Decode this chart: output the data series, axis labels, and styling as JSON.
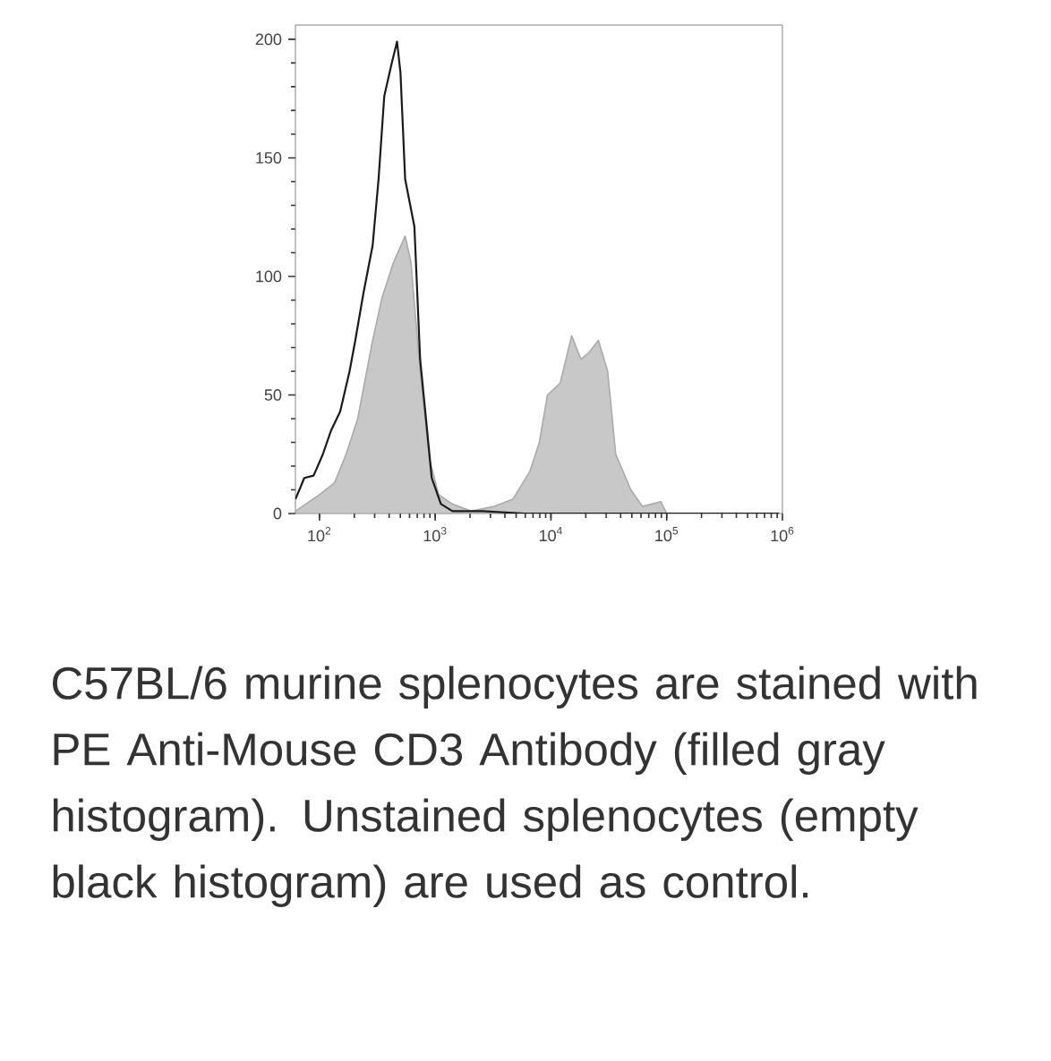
{
  "chart_data": {
    "type": "area",
    "log": "x",
    "grid": false,
    "xlim": [
      62,
      1000000
    ],
    "ylim": [
      0,
      206
    ],
    "xticks": [
      {
        "value": 100,
        "label": "10$^{2}$"
      },
      {
        "value": 1000,
        "label": "10$^{3}$"
      },
      {
        "value": 10000,
        "label": "10$^{4}$"
      },
      {
        "value": 100000,
        "label": "10$^{5}$"
      },
      {
        "value": 1000000,
        "label": "10$^{6}$"
      }
    ],
    "yticks": [
      0,
      50,
      100,
      150,
      200
    ],
    "series": [
      {
        "color": "#c8c8c8",
        "x": [
          62,
          100,
          135,
          170,
          214,
          288,
          347,
          437,
          550,
          617,
          741,
          891,
          1070,
          1410,
          2040,
          3240,
          4680,
          6610,
          7940,
          9330,
          12000,
          15100,
          18200,
          21400,
          25700,
          30900,
          36300,
          49000,
          61700,
          89100,
          100000,
          933000
        ],
        "values": [
          1,
          8,
          13,
          25,
          40,
          73,
          91,
          106,
          117,
          106,
          60,
          23,
          8,
          4,
          1,
          3,
          6,
          18,
          30,
          50,
          55,
          75,
          65,
          68,
          73,
          60,
          25,
          10,
          3,
          5,
          0,
          0
        ]
      },
      {
        "type": "line",
        "color": "#1a1a1a",
        "x": [
          62,
          74,
          89,
          107,
          126,
          151,
          182,
          204,
          240,
          288,
          324,
          363,
          417,
          468,
          501,
          550,
          661,
          741,
          832,
          933,
          1120,
          1410,
          2570,
          5890,
          933000
        ],
        "values": [
          6,
          15,
          16,
          25,
          35,
          43,
          60,
          73,
          93,
          113,
          141,
          176,
          189,
          199,
          186,
          141,
          121,
          65,
          40,
          15,
          4,
          1,
          1,
          0,
          0
        ]
      }
    ],
    "annotations": [
      "C57BL/6 murine splenocytes are stained with PE Anti-Mouse CD3 Antibody (filled gray histogram). Unstained splenocytes (empty black histogram) are used as control."
    ]
  }
}
